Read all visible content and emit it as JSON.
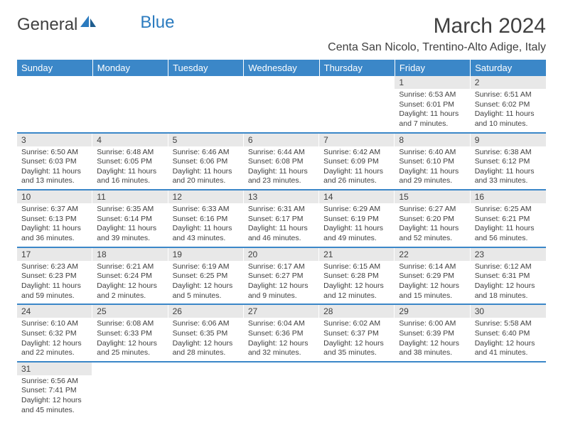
{
  "logo": {
    "part1": "General",
    "part2": "Blue"
  },
  "title": "March 2024",
  "location": "Centa San Nicolo, Trentino-Alto Adige, Italy",
  "colors": {
    "header_bg": "#3b87c8",
    "header_text": "#ffffff",
    "daynum_bg": "#e8e8e8",
    "text": "#404040",
    "row_border": "#3b87c8",
    "logo_blue": "#2b7bbf"
  },
  "weekdays": [
    "Sunday",
    "Monday",
    "Tuesday",
    "Wednesday",
    "Thursday",
    "Friday",
    "Saturday"
  ],
  "weeks": [
    [
      {
        "day": "",
        "sunrise": "",
        "sunset": "",
        "daylight": ""
      },
      {
        "day": "",
        "sunrise": "",
        "sunset": "",
        "daylight": ""
      },
      {
        "day": "",
        "sunrise": "",
        "sunset": "",
        "daylight": ""
      },
      {
        "day": "",
        "sunrise": "",
        "sunset": "",
        "daylight": ""
      },
      {
        "day": "",
        "sunrise": "",
        "sunset": "",
        "daylight": ""
      },
      {
        "day": "1",
        "sunrise": "Sunrise: 6:53 AM",
        "sunset": "Sunset: 6:01 PM",
        "daylight": "Daylight: 11 hours and 7 minutes."
      },
      {
        "day": "2",
        "sunrise": "Sunrise: 6:51 AM",
        "sunset": "Sunset: 6:02 PM",
        "daylight": "Daylight: 11 hours and 10 minutes."
      }
    ],
    [
      {
        "day": "3",
        "sunrise": "Sunrise: 6:50 AM",
        "sunset": "Sunset: 6:03 PM",
        "daylight": "Daylight: 11 hours and 13 minutes."
      },
      {
        "day": "4",
        "sunrise": "Sunrise: 6:48 AM",
        "sunset": "Sunset: 6:05 PM",
        "daylight": "Daylight: 11 hours and 16 minutes."
      },
      {
        "day": "5",
        "sunrise": "Sunrise: 6:46 AM",
        "sunset": "Sunset: 6:06 PM",
        "daylight": "Daylight: 11 hours and 20 minutes."
      },
      {
        "day": "6",
        "sunrise": "Sunrise: 6:44 AM",
        "sunset": "Sunset: 6:08 PM",
        "daylight": "Daylight: 11 hours and 23 minutes."
      },
      {
        "day": "7",
        "sunrise": "Sunrise: 6:42 AM",
        "sunset": "Sunset: 6:09 PM",
        "daylight": "Daylight: 11 hours and 26 minutes."
      },
      {
        "day": "8",
        "sunrise": "Sunrise: 6:40 AM",
        "sunset": "Sunset: 6:10 PM",
        "daylight": "Daylight: 11 hours and 29 minutes."
      },
      {
        "day": "9",
        "sunrise": "Sunrise: 6:38 AM",
        "sunset": "Sunset: 6:12 PM",
        "daylight": "Daylight: 11 hours and 33 minutes."
      }
    ],
    [
      {
        "day": "10",
        "sunrise": "Sunrise: 6:37 AM",
        "sunset": "Sunset: 6:13 PM",
        "daylight": "Daylight: 11 hours and 36 minutes."
      },
      {
        "day": "11",
        "sunrise": "Sunrise: 6:35 AM",
        "sunset": "Sunset: 6:14 PM",
        "daylight": "Daylight: 11 hours and 39 minutes."
      },
      {
        "day": "12",
        "sunrise": "Sunrise: 6:33 AM",
        "sunset": "Sunset: 6:16 PM",
        "daylight": "Daylight: 11 hours and 43 minutes."
      },
      {
        "day": "13",
        "sunrise": "Sunrise: 6:31 AM",
        "sunset": "Sunset: 6:17 PM",
        "daylight": "Daylight: 11 hours and 46 minutes."
      },
      {
        "day": "14",
        "sunrise": "Sunrise: 6:29 AM",
        "sunset": "Sunset: 6:19 PM",
        "daylight": "Daylight: 11 hours and 49 minutes."
      },
      {
        "day": "15",
        "sunrise": "Sunrise: 6:27 AM",
        "sunset": "Sunset: 6:20 PM",
        "daylight": "Daylight: 11 hours and 52 minutes."
      },
      {
        "day": "16",
        "sunrise": "Sunrise: 6:25 AM",
        "sunset": "Sunset: 6:21 PM",
        "daylight": "Daylight: 11 hours and 56 minutes."
      }
    ],
    [
      {
        "day": "17",
        "sunrise": "Sunrise: 6:23 AM",
        "sunset": "Sunset: 6:23 PM",
        "daylight": "Daylight: 11 hours and 59 minutes."
      },
      {
        "day": "18",
        "sunrise": "Sunrise: 6:21 AM",
        "sunset": "Sunset: 6:24 PM",
        "daylight": "Daylight: 12 hours and 2 minutes."
      },
      {
        "day": "19",
        "sunrise": "Sunrise: 6:19 AM",
        "sunset": "Sunset: 6:25 PM",
        "daylight": "Daylight: 12 hours and 5 minutes."
      },
      {
        "day": "20",
        "sunrise": "Sunrise: 6:17 AM",
        "sunset": "Sunset: 6:27 PM",
        "daylight": "Daylight: 12 hours and 9 minutes."
      },
      {
        "day": "21",
        "sunrise": "Sunrise: 6:15 AM",
        "sunset": "Sunset: 6:28 PM",
        "daylight": "Daylight: 12 hours and 12 minutes."
      },
      {
        "day": "22",
        "sunrise": "Sunrise: 6:14 AM",
        "sunset": "Sunset: 6:29 PM",
        "daylight": "Daylight: 12 hours and 15 minutes."
      },
      {
        "day": "23",
        "sunrise": "Sunrise: 6:12 AM",
        "sunset": "Sunset: 6:31 PM",
        "daylight": "Daylight: 12 hours and 18 minutes."
      }
    ],
    [
      {
        "day": "24",
        "sunrise": "Sunrise: 6:10 AM",
        "sunset": "Sunset: 6:32 PM",
        "daylight": "Daylight: 12 hours and 22 minutes."
      },
      {
        "day": "25",
        "sunrise": "Sunrise: 6:08 AM",
        "sunset": "Sunset: 6:33 PM",
        "daylight": "Daylight: 12 hours and 25 minutes."
      },
      {
        "day": "26",
        "sunrise": "Sunrise: 6:06 AM",
        "sunset": "Sunset: 6:35 PM",
        "daylight": "Daylight: 12 hours and 28 minutes."
      },
      {
        "day": "27",
        "sunrise": "Sunrise: 6:04 AM",
        "sunset": "Sunset: 6:36 PM",
        "daylight": "Daylight: 12 hours and 32 minutes."
      },
      {
        "day": "28",
        "sunrise": "Sunrise: 6:02 AM",
        "sunset": "Sunset: 6:37 PM",
        "daylight": "Daylight: 12 hours and 35 minutes."
      },
      {
        "day": "29",
        "sunrise": "Sunrise: 6:00 AM",
        "sunset": "Sunset: 6:39 PM",
        "daylight": "Daylight: 12 hours and 38 minutes."
      },
      {
        "day": "30",
        "sunrise": "Sunrise: 5:58 AM",
        "sunset": "Sunset: 6:40 PM",
        "daylight": "Daylight: 12 hours and 41 minutes."
      }
    ],
    [
      {
        "day": "31",
        "sunrise": "Sunrise: 6:56 AM",
        "sunset": "Sunset: 7:41 PM",
        "daylight": "Daylight: 12 hours and 45 minutes."
      },
      {
        "day": "",
        "sunrise": "",
        "sunset": "",
        "daylight": ""
      },
      {
        "day": "",
        "sunrise": "",
        "sunset": "",
        "daylight": ""
      },
      {
        "day": "",
        "sunrise": "",
        "sunset": "",
        "daylight": ""
      },
      {
        "day": "",
        "sunrise": "",
        "sunset": "",
        "daylight": ""
      },
      {
        "day": "",
        "sunrise": "",
        "sunset": "",
        "daylight": ""
      },
      {
        "day": "",
        "sunrise": "",
        "sunset": "",
        "daylight": ""
      }
    ]
  ]
}
